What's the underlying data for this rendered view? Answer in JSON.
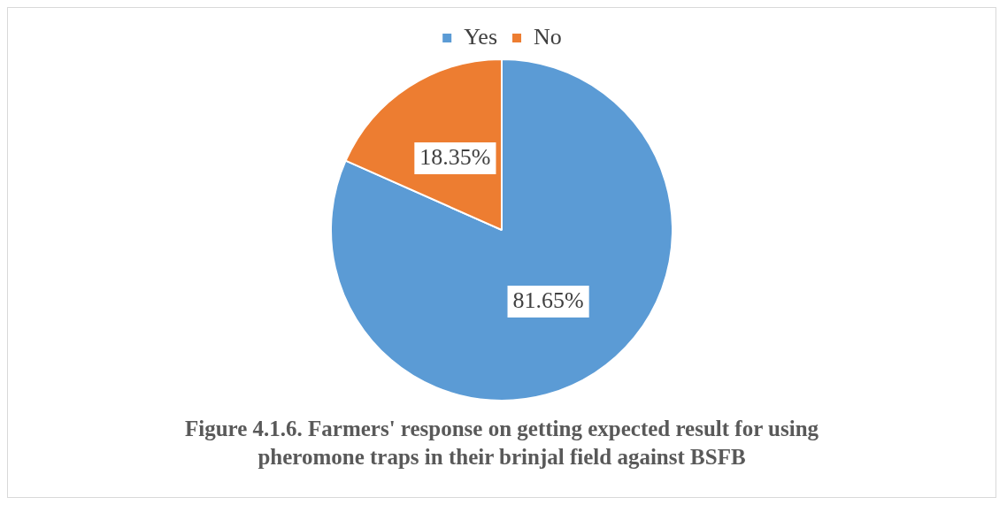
{
  "chart_data": {
    "type": "pie",
    "title": "Figure 4.1.6. Farmers' response on getting expected result for using pheromone traps in their brinjal field against BSFB",
    "categories": [
      "Yes",
      "No"
    ],
    "values": [
      81.65,
      18.35
    ],
    "colors": [
      "#5b9bd5",
      "#ed7d31"
    ],
    "value_labels": [
      "81.65%",
      "18.35%"
    ],
    "legend": "top"
  }
}
